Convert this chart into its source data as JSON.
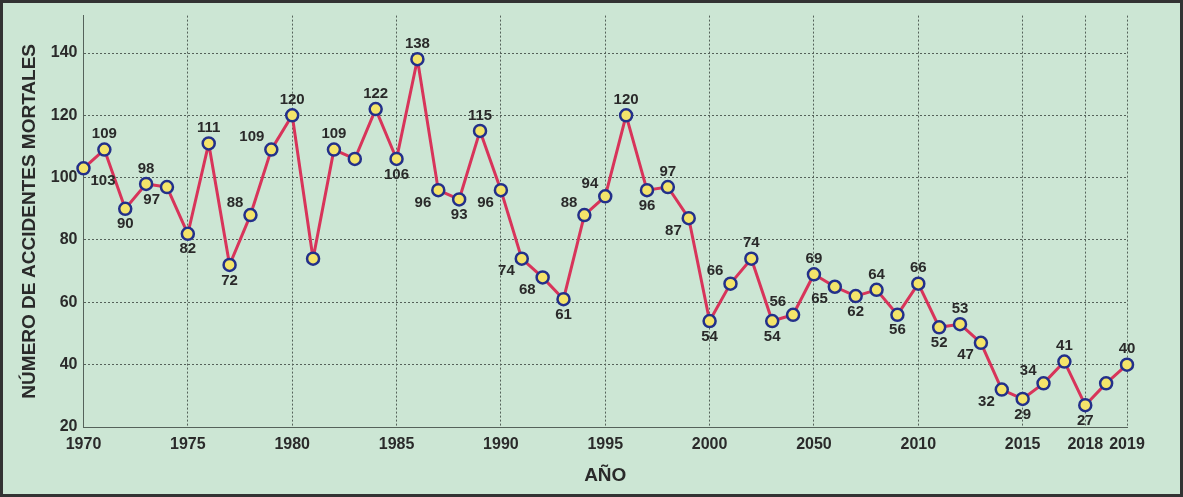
{
  "chart_data": {
    "type": "line",
    "xlabel": "AÑO",
    "ylabel": "NÚMERO DE ACCIDENTES MORTALES",
    "categories": [
      "1970",
      null,
      null,
      null,
      null,
      "1975",
      null,
      null,
      null,
      null,
      "1980",
      null,
      null,
      null,
      null,
      "1985",
      null,
      null,
      null,
      null,
      "1990",
      null,
      null,
      null,
      null,
      "1995",
      null,
      null,
      null,
      null,
      "2000",
      null,
      null,
      null,
      null,
      "2050",
      null,
      null,
      null,
      null,
      "2010",
      null,
      null,
      null,
      null,
      "2015",
      null,
      null,
      "2018",
      null,
      "2019"
    ],
    "series": [
      {
        "color": "#d8345a",
        "values": [
          103,
          109,
          90,
          98,
          97,
          82,
          111,
          72,
          88,
          109,
          120,
          74,
          109,
          106,
          122,
          106,
          138,
          96,
          93,
          115,
          96,
          74,
          68,
          61,
          88,
          94,
          120,
          96,
          97,
          87,
          54,
          66,
          74,
          54,
          56,
          69,
          65,
          62,
          64,
          56,
          66,
          52,
          53,
          47,
          32,
          29,
          34,
          41,
          27,
          34,
          40
        ],
        "value_labels": [
          "103",
          "109",
          "90",
          "98",
          "97",
          "82",
          "111",
          "72",
          "88",
          "109",
          "120",
          null,
          "109",
          null,
          "122",
          "106",
          "138",
          "96",
          "93",
          "115",
          "96",
          "74",
          "68",
          "61",
          "88",
          "94",
          "120",
          "96",
          "97",
          "87",
          "54",
          "66",
          "74",
          "54",
          "56",
          "69",
          "65",
          "62",
          "64",
          "56",
          "66",
          "52",
          "53",
          "47",
          "32",
          "29",
          "34",
          "41",
          "27",
          null,
          "40"
        ]
      }
    ],
    "ylim": [
      20,
      152
    ],
    "yticks": [
      20,
      40,
      60,
      80,
      100,
      120,
      140
    ],
    "grid": true,
    "legend": false,
    "marker": "circle",
    "line_style": "solid"
  }
}
